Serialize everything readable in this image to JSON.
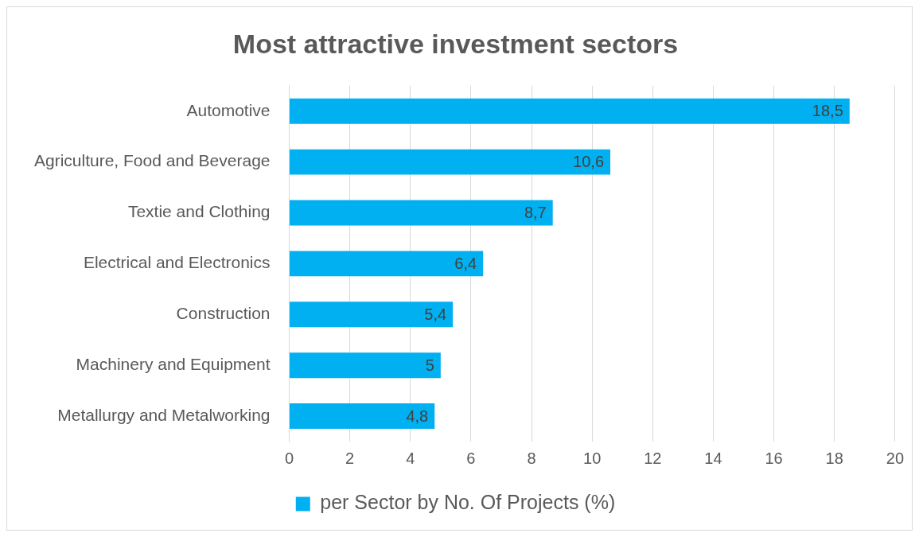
{
  "chart_data": {
    "type": "bar",
    "orientation": "horizontal",
    "title": "Most attractive investment sectors",
    "categories": [
      "Automotive",
      "Agriculture, Food and Beverage",
      "Textie and Clothing",
      "Electrical and Electronics",
      "Construction",
      "Machinery and Equipment",
      "Metallurgy and Metalworking"
    ],
    "series": [
      {
        "name": "per Sector by No. Of Projects (%)",
        "color": "#00b0f0",
        "values": [
          18.5,
          10.6,
          8.7,
          6.4,
          5.4,
          5,
          4.8
        ],
        "value_labels": [
          "18,5",
          "10,6",
          "8,7",
          "6,4",
          "5,4",
          "5",
          "4,8"
        ]
      }
    ],
    "xlim": [
      0,
      20
    ],
    "xticks": [
      0,
      2,
      4,
      6,
      8,
      10,
      12,
      14,
      16,
      18,
      20
    ],
    "grid": "x",
    "legend": "bottom"
  }
}
